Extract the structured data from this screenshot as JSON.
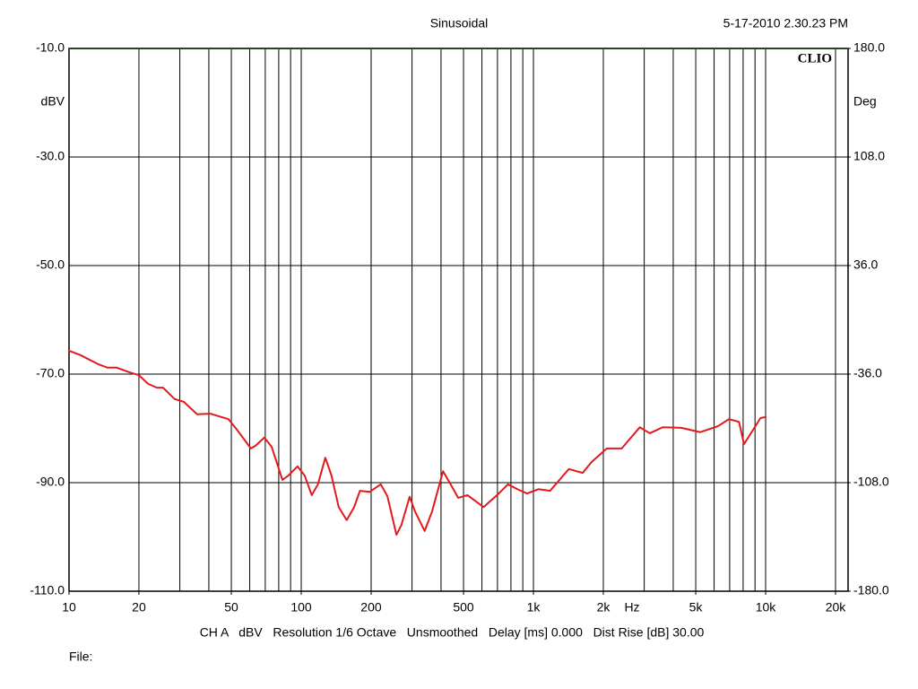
{
  "chart_data": {
    "type": "line",
    "title": "Sinusoidal",
    "date": "5-17-2010 2.30.23 PM",
    "brand": "CLIO",
    "ylabel": "dBV",
    "y2label": "Deg",
    "xlabel": "Hz",
    "footer": "CH A   dBV   Resolution 1/6 Octave   Unsmoothed   Delay [ms] 0.000   Dist Rise [dB] 30.00",
    "file_label": "File:",
    "xscale": "log",
    "grid": true,
    "xlim": [
      10,
      22650
    ],
    "ylim": [
      -110,
      -10
    ],
    "y2lim": [
      -180,
      180
    ],
    "xticks": [
      10,
      20,
      50,
      100,
      200,
      500,
      {
        "value": 1000,
        "label": "1k"
      },
      {
        "value": 2000,
        "label": "2k"
      },
      {
        "value": 5000,
        "label": "5k"
      },
      {
        "value": 10000,
        "label": "10k"
      },
      {
        "value": 20000,
        "label": "20k"
      }
    ],
    "xgrid": [
      20,
      30,
      40,
      50,
      60,
      70,
      80,
      90,
      100,
      200,
      300,
      400,
      500,
      600,
      700,
      800,
      900,
      1000,
      2000,
      3000,
      4000,
      5000,
      6000,
      7000,
      8000,
      9000,
      10000,
      20000
    ],
    "yticks": [
      {
        "value": -10,
        "label": "-10.0"
      },
      {
        "value": -30,
        "label": "-30.0"
      },
      {
        "value": -50,
        "label": "-50.0"
      },
      {
        "value": -70,
        "label": "-70.0"
      },
      {
        "value": -90,
        "label": "-90.0"
      },
      {
        "value": -110,
        "label": "-110.0"
      }
    ],
    "y2ticks": [
      {
        "value": 180,
        "label": "180.0"
      },
      {
        "value": 108,
        "label": "108.0"
      },
      {
        "value": 36,
        "label": "36.0"
      },
      {
        "value": -36,
        "label": "-36.0"
      },
      {
        "value": -108,
        "label": "-108.0"
      },
      {
        "value": -180,
        "label": "-180.0"
      }
    ],
    "series": [
      {
        "name": "CH A",
        "color": "#e31a1c",
        "x": [
          10,
          11.2,
          13.4,
          14.6,
          16,
          18.3,
          20,
          21.9,
          23.9,
          25.4,
          28.5,
          31.2,
          35.6,
          40.7,
          48.6,
          53.2,
          60.7,
          63.5,
          69.4,
          74.6,
          83,
          88,
          96.4,
          103.5,
          111,
          118,
          127,
          135,
          145,
          157,
          169,
          179,
          197,
          220,
          235,
          257,
          270,
          293,
          309,
          340,
          366,
          408,
          440,
          474,
          520,
          610,
          709,
          777,
          862,
          940,
          1050,
          1180,
          1420,
          1630,
          1780,
          2070,
          2400,
          2870,
          3170,
          3600,
          4340,
          5230,
          6230,
          6950,
          7680,
          8070,
          8880,
          9500,
          10000
        ],
        "values": [
          -65.7,
          -66.5,
          -68.2,
          -68.8,
          -68.8,
          -69.7,
          -70.2,
          -71.8,
          -72.5,
          -72.5,
          -74.6,
          -75.1,
          -77.4,
          -77.3,
          -78.3,
          -80.4,
          -83.7,
          -83.2,
          -81.7,
          -83.4,
          -89.5,
          -88.7,
          -87.0,
          -88.7,
          -92.3,
          -90.3,
          -85.4,
          -88.7,
          -94.5,
          -96.9,
          -94.5,
          -91.5,
          -91.7,
          -90.3,
          -92.5,
          -99.6,
          -97.8,
          -92.6,
          -95.3,
          -98.9,
          -95.3,
          -87.9,
          -90.3,
          -92.8,
          -92.3,
          -94.5,
          -92.0,
          -90.3,
          -91.3,
          -92.0,
          -91.2,
          -91.5,
          -87.5,
          -88.2,
          -86.2,
          -83.7,
          -83.7,
          -79.8,
          -80.9,
          -79.8,
          -79.9,
          -80.7,
          -79.6,
          -78.3,
          -78.8,
          -82.9,
          -80.1,
          -78.1,
          -77.9
        ]
      }
    ]
  }
}
